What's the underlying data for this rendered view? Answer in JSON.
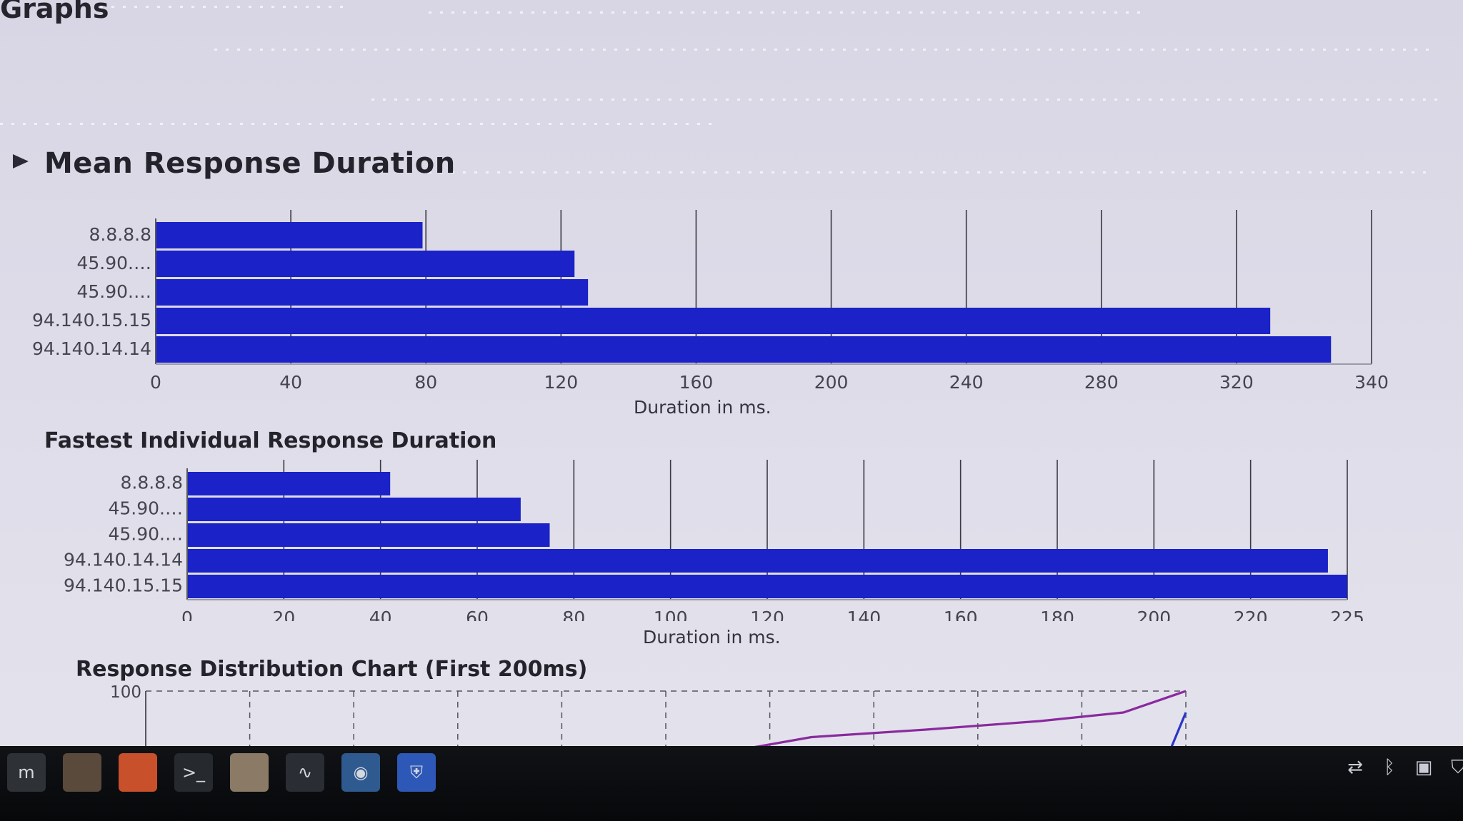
{
  "page": {
    "heading": "Graphs"
  },
  "mean_section": {
    "title": "Mean Response Duration"
  },
  "chart_data": [
    {
      "type": "bar",
      "orientation": "horizontal",
      "categories": [
        "8.8.8.8",
        "45.90.…",
        "45.90.…",
        "94.140.15.15",
        "94.140.14.14"
      ],
      "values": [
        79,
        124,
        128,
        330,
        348
      ],
      "xlabel": "Duration in ms.",
      "xticks": [
        0,
        40,
        80,
        120,
        160,
        200,
        240,
        280,
        320,
        340
      ],
      "color": "#1a22c8",
      "grid": "vertical"
    },
    {
      "type": "bar",
      "orientation": "horizontal",
      "title": "Fastest Individual Response Duration",
      "categories": [
        "8.8.8.8",
        "45.90.…",
        "45.90.…",
        "94.140.14.14",
        "94.140.15.15"
      ],
      "values": [
        42,
        69,
        75,
        236,
        242
      ],
      "xlabel": "Duration in ms.",
      "xticks": [
        0,
        20,
        40,
        60,
        80,
        100,
        120,
        140,
        160,
        180,
        200,
        220,
        225
      ],
      "color": "#1a22c8",
      "grid": "vertical"
    },
    {
      "type": "line",
      "title": "Response Distribution Chart (First 200ms)",
      "yticks": [
        100
      ],
      "series": [
        {
          "color": "#8a2a9e",
          "x": [
            0.57,
            0.64,
            0.75,
            0.86,
            0.94,
            1.0
          ],
          "y": [
            -10,
            14,
            28,
            44,
            60,
            100
          ]
        },
        {
          "color": "#2a36c8",
          "x": [
            0.985,
            1.0
          ],
          "y": [
            -10,
            60
          ]
        }
      ]
    }
  ],
  "taskbar": {
    "apps": [
      "menu-icon",
      "files-icon",
      "firefox-icon",
      "terminal-icon",
      "folder-icon",
      "system-monitor-icon",
      "screenshot-icon",
      "update-manager-icon"
    ],
    "tray": [
      "network-icon",
      "bluetooth-icon",
      "clipboard-icon",
      "shield-icon"
    ]
  }
}
